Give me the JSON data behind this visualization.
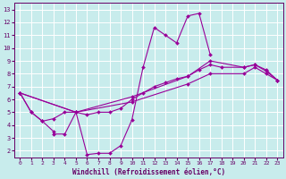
{
  "xlabel": "Windchill (Refroidissement éolien,°C)",
  "bg_color": "#c8ecec",
  "grid_color": "#ffffff",
  "line_color": "#990099",
  "xlim": [
    -0.5,
    23.5
  ],
  "ylim": [
    1.5,
    13.5
  ],
  "xticks": [
    0,
    1,
    2,
    3,
    4,
    5,
    6,
    7,
    8,
    9,
    10,
    11,
    12,
    13,
    14,
    15,
    16,
    17,
    18,
    19,
    20,
    21,
    22,
    23
  ],
  "yticks": [
    2,
    3,
    4,
    5,
    6,
    7,
    8,
    9,
    10,
    11,
    12,
    13
  ],
  "s1_x": [
    0,
    1,
    2,
    3,
    3,
    4,
    5,
    6,
    7,
    8,
    9,
    10,
    11,
    12,
    13,
    14,
    15,
    16,
    17
  ],
  "s1_y": [
    6.5,
    5.0,
    4.3,
    3.5,
    3.3,
    3.3,
    5.0,
    1.7,
    1.8,
    1.8,
    2.4,
    4.4,
    8.5,
    11.6,
    11.0,
    10.4,
    12.5,
    12.7,
    9.5
  ],
  "s2_x": [
    0,
    1,
    2,
    3,
    4,
    5,
    6,
    7,
    8,
    9,
    10,
    11,
    12,
    13,
    14,
    15,
    16,
    17,
    18,
    20,
    21,
    22,
    23
  ],
  "s2_y": [
    6.5,
    5.0,
    4.3,
    4.5,
    5.0,
    5.0,
    4.8,
    5.0,
    5.0,
    5.3,
    6.0,
    6.5,
    7.0,
    7.3,
    7.6,
    7.8,
    8.3,
    8.7,
    8.5,
    8.5,
    8.7,
    8.2,
    7.5
  ],
  "s3_x": [
    0,
    5,
    10,
    15,
    17,
    20,
    21,
    22,
    23
  ],
  "s3_y": [
    6.5,
    5.0,
    5.8,
    7.2,
    8.0,
    8.0,
    8.5,
    8.0,
    7.5
  ],
  "s4_x": [
    0,
    5,
    10,
    15,
    17,
    20,
    21,
    22,
    23
  ],
  "s4_y": [
    6.5,
    5.0,
    6.2,
    7.8,
    9.0,
    8.5,
    8.7,
    8.3,
    7.5
  ]
}
